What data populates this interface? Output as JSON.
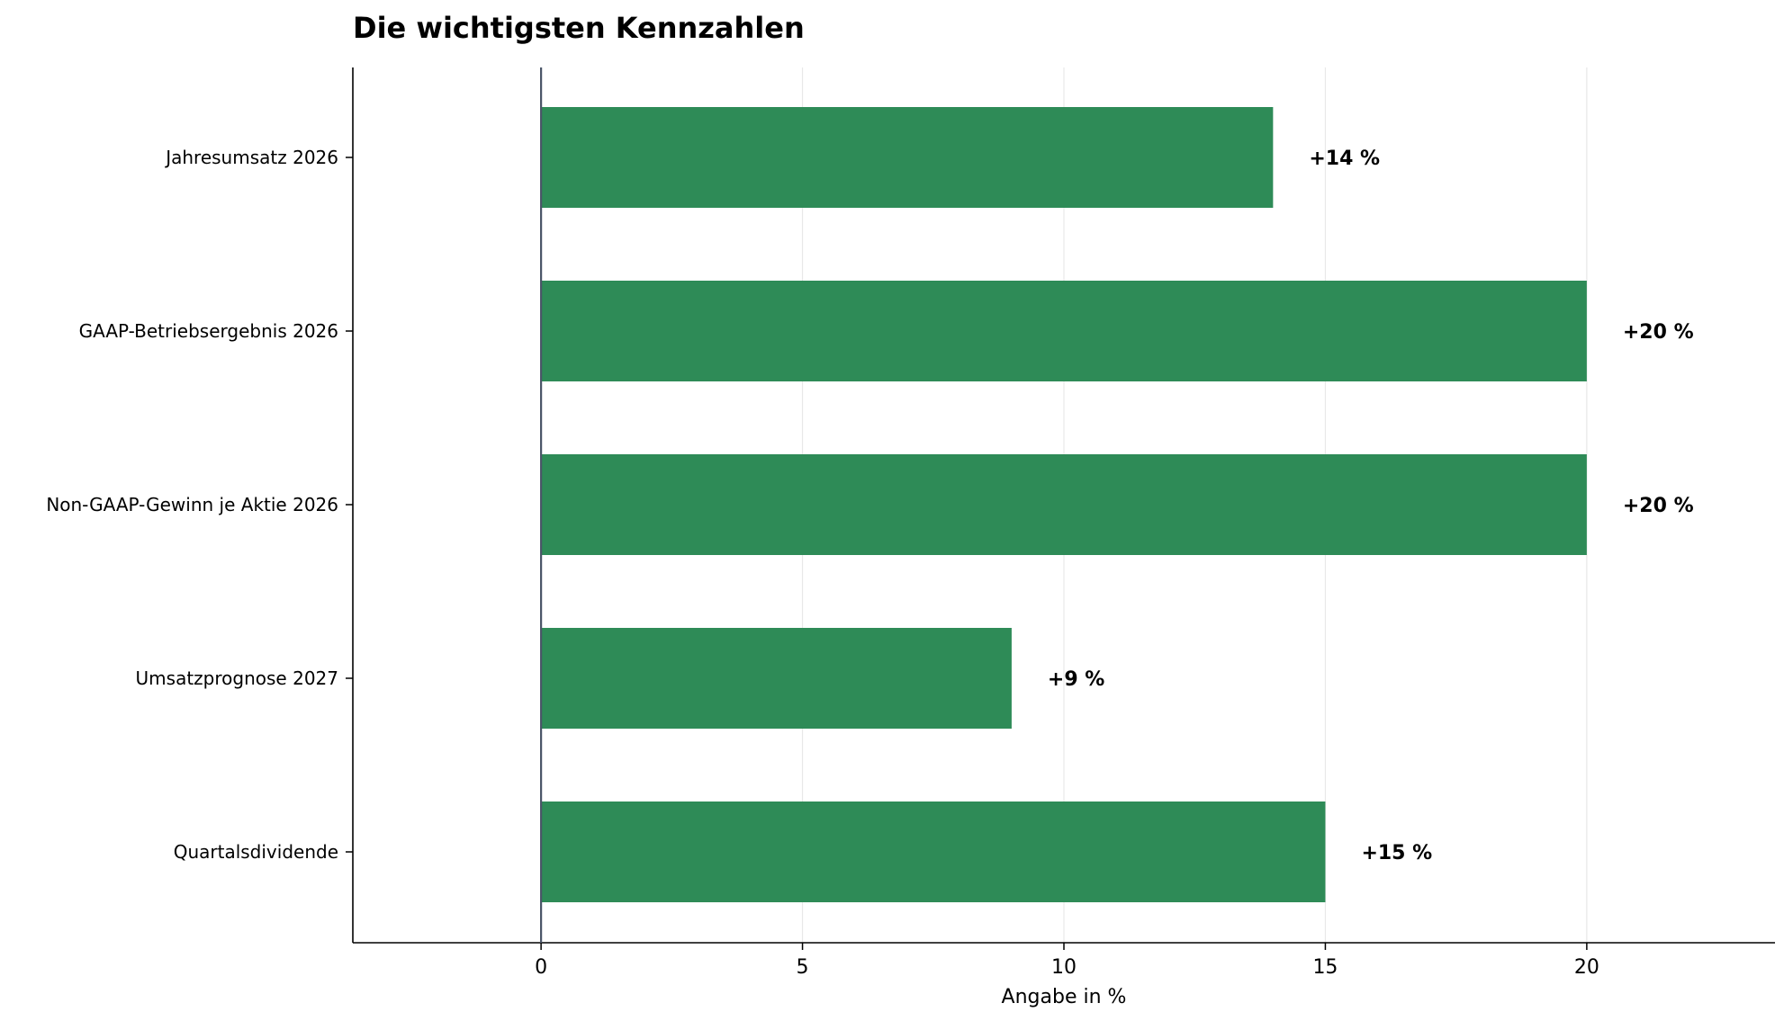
{
  "colors": {
    "bar": "#2e8b57",
    "grid": "#e8e8e8",
    "axis": "#000000",
    "zero_line": "#4a5568",
    "text": "#000000"
  },
  "chart_data": {
    "type": "bar",
    "orientation": "horizontal",
    "title": "Die wichtigsten Kennzahlen",
    "xlabel": "Angabe in %",
    "ylabel": "",
    "categories": [
      "Jahresumsatz 2026",
      "GAAP-Betriebsergebnis 2026",
      "Non-GAAP-Gewinn je Aktie 2026",
      "Umsatzprognose 2027",
      "Quartalsdividende"
    ],
    "values": [
      14,
      20,
      20,
      9,
      15
    ],
    "value_labels": [
      "+14 %",
      "+20 %",
      "+20 %",
      "+9 %",
      "+15 %"
    ],
    "xlim": [
      -3.6,
      23.6
    ],
    "xticks": [
      0,
      5,
      10,
      15,
      20
    ],
    "xtick_labels": [
      "0",
      "5",
      "10",
      "15",
      "20"
    ],
    "grid": "vertical",
    "legend": "none"
  }
}
